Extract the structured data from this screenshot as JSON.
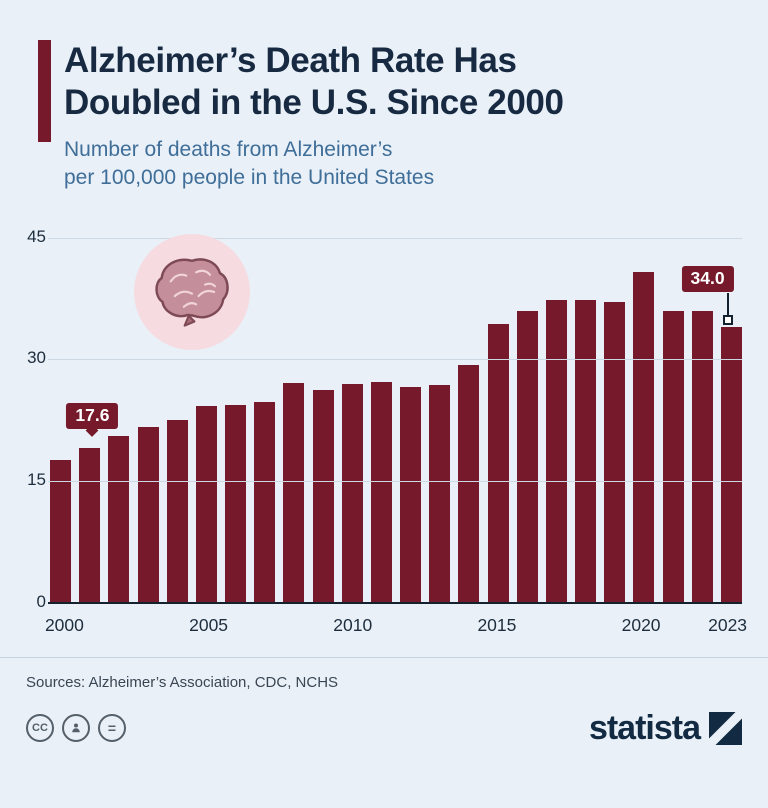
{
  "colors": {
    "background": "#e9f0f7",
    "bar": "#75192b",
    "title": "#172a41",
    "subtitle": "#3f6e99",
    "axis_text": "#1e2d3d",
    "gridline": "#ccd9e4",
    "baseline": "#16212e",
    "badge_bg": "#75192b",
    "badge_text": "#ffffff",
    "brand_navy": "#122a42",
    "brain_circle_bg": "#f6dbe1"
  },
  "header": {
    "title_line1": "Alzheimer’s Death Rate Has",
    "title_line2": "Doubled in the U.S. Since 2000",
    "subtitle_line1": "Number of deaths from Alzheimer’s",
    "subtitle_line2": "per 100,000 people in the United States"
  },
  "chart_data": {
    "type": "bar",
    "title": "Alzheimer’s Death Rate Has Doubled in the U.S. Since 2000",
    "subtitle": "Number of deaths from Alzheimer’s per 100,000 people in the United States",
    "categories": [
      2000,
      2001,
      2002,
      2003,
      2004,
      2005,
      2006,
      2007,
      2008,
      2009,
      2010,
      2011,
      2012,
      2013,
      2014,
      2015,
      2016,
      2017,
      2018,
      2019,
      2020,
      2021,
      2022,
      2023
    ],
    "values": [
      17.6,
      19.1,
      20.5,
      21.6,
      22.5,
      24.2,
      24.3,
      24.7,
      27.1,
      26.2,
      27.0,
      27.2,
      26.6,
      26.8,
      29.3,
      34.4,
      35.9,
      37.3,
      37.3,
      37.0,
      40.7,
      36.0,
      36.0,
      34.0
    ],
    "ylim": [
      0,
      45
    ],
    "yticks": [
      0,
      15,
      30,
      45
    ],
    "xticks": [
      2000,
      2005,
      2010,
      2015,
      2020,
      2023
    ],
    "grid": true,
    "legend": "none",
    "bar_color": "#75192b",
    "annotations": [
      {
        "index": 0,
        "label": "17.6",
        "dx": 28,
        "gap": 30,
        "pointer": "diamond"
      },
      {
        "index": 23,
        "label": "34.0",
        "dx": -20,
        "gap": 34,
        "pointer": "line-square"
      }
    ]
  },
  "footer": {
    "sources": "Sources: Alzheimer’s Association, CDC, NCHS",
    "brand": "statista",
    "license": {
      "cc_label": "CC",
      "equals_label": "="
    }
  }
}
